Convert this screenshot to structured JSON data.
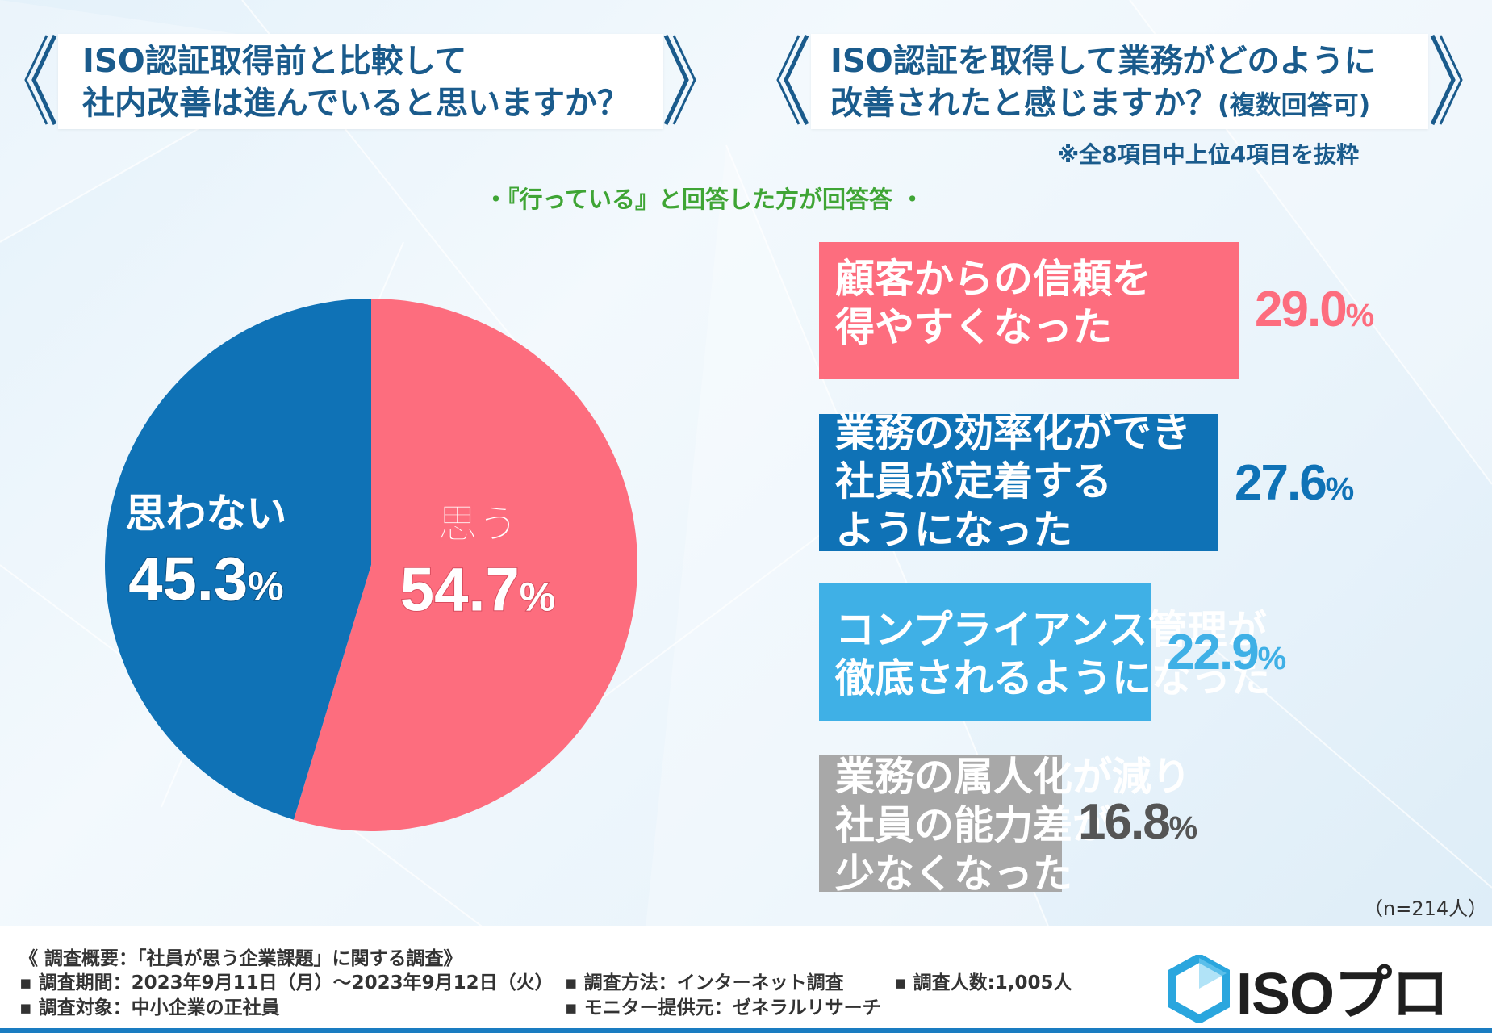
{
  "left_question": {
    "line1": "ISO認証取得前と比較して",
    "line2": "社内改善は進んでいると思いますか？"
  },
  "right_question": {
    "line1": "ISO認証を取得して業務がどのように",
    "line2": "改善されたと感じますか？",
    "line2_sub": "(複数回答可)"
  },
  "right_note": "※全8項目中上位4項目を抜粋",
  "green_note": "・『行っている』と回答した方が回答答 ・",
  "colors": {
    "pink": "#fd6d7e",
    "blue": "#0f72b6",
    "light_blue": "#3fb0e6",
    "gray": "#a8a8a8",
    "title_blue": "#1a5b8c"
  },
  "chart_data": [
    {
      "type": "pie",
      "title": "ISO認証取得前と比較して社内改善は進んでいると思いますか？",
      "slices": [
        {
          "label": "思う",
          "value": 54.7,
          "value_main": "54.7",
          "value_unit": "%",
          "color": "#fd6d7e"
        },
        {
          "label": "思わない",
          "value": 45.3,
          "value_main": "45.3",
          "value_unit": "%",
          "color": "#0f72b6"
        }
      ]
    },
    {
      "type": "bar",
      "title": "ISO認証を取得して業務がどのように改善されたと感じますか？(複数回答可)",
      "xlim": [
        0,
        29.0
      ],
      "items": [
        {
          "lines": [
            "顧客からの信頼を",
            "得やすくなった"
          ],
          "value": 29.0,
          "value_main": "29.0",
          "value_unit": "%",
          "color": "#fd6d7e"
        },
        {
          "lines": [
            "業務の効率化ができ",
            "社員が定着する",
            "ようになった"
          ],
          "value": 27.6,
          "value_main": "27.6",
          "value_unit": "%",
          "color": "#0f72b6"
        },
        {
          "lines": [
            "コンプライアンス管理が",
            "徹底されるようになった"
          ],
          "value": 22.9,
          "value_main": "22.9",
          "value_unit": "%",
          "color": "#3fb0e6"
        },
        {
          "lines": [
            "業務の属人化が減り",
            "社員の能力差が",
            "少なくなった"
          ],
          "value": 16.8,
          "value_main": "16.8",
          "value_unit": "%",
          "color": "#a8a8a8"
        }
      ]
    }
  ],
  "sample_note": "（n=214人）",
  "footer": {
    "summary": "《 調査概要：「社員が思う企業課題」に関する調査》",
    "period": "▪ 調査期間：2023年9月11日（月）～2023年9月12日（火）",
    "target": "▪ 調査対象：中小企業の正社員",
    "method": "▪ 調査方法：インターネット調査",
    "monitor": "▪ モニター提供元：ゼネラルリサーチ",
    "count": "▪ 調査人数:1,005人",
    "logo_text": "ISOプロ"
  }
}
